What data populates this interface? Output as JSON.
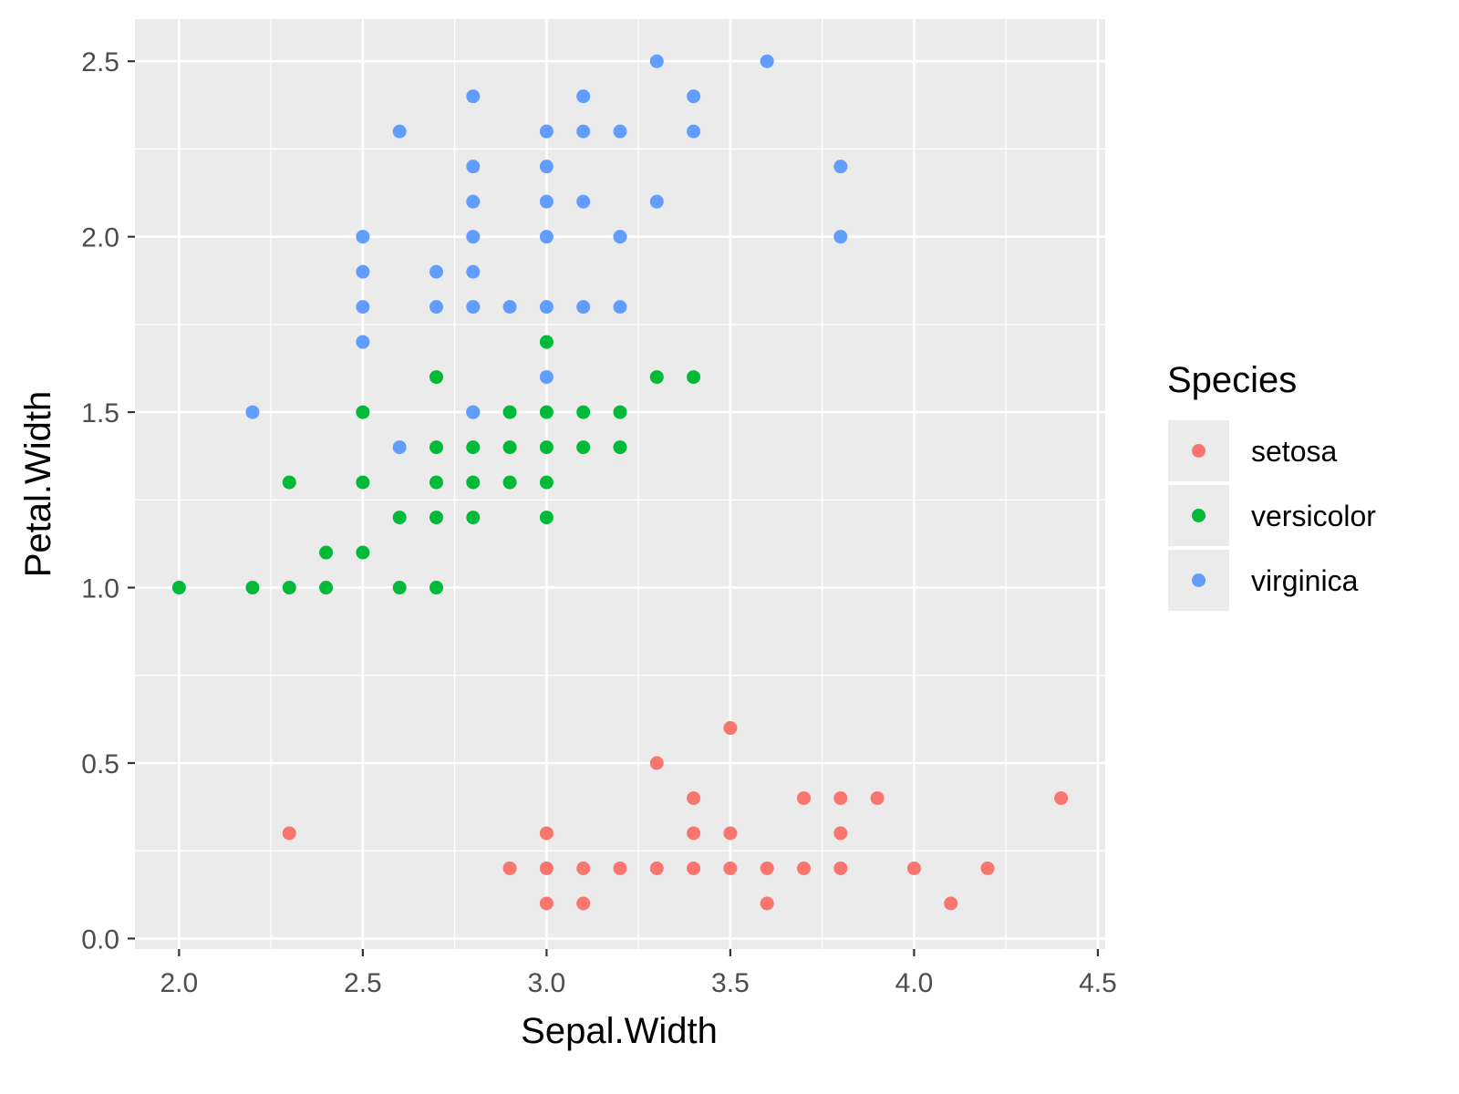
{
  "chart_data": {
    "type": "scatter",
    "title": "",
    "xlabel": "Sepal.Width",
    "ylabel": "Petal.Width",
    "xlim": [
      1.88,
      4.52
    ],
    "ylim": [
      -0.03,
      2.62
    ],
    "x_ticks": [
      2.0,
      2.5,
      3.0,
      3.5,
      4.0,
      4.5
    ],
    "x_tick_labels": [
      "2.0",
      "2.5",
      "3.0",
      "3.5",
      "4.0",
      "4.5"
    ],
    "y_ticks": [
      0.0,
      0.5,
      1.0,
      1.5,
      2.0,
      2.5
    ],
    "y_tick_labels": [
      "0.0",
      "0.5",
      "1.0",
      "1.5",
      "2.0",
      "2.5"
    ],
    "grid": true,
    "legend_title": "Species",
    "legend_position": "right",
    "series": [
      {
        "name": "setosa",
        "color": "#F8766D",
        "points": [
          [
            2.3,
            0.3
          ],
          [
            2.9,
            0.2
          ],
          [
            3.0,
            0.1
          ],
          [
            3.0,
            0.2
          ],
          [
            3.0,
            0.3
          ],
          [
            3.1,
            0.1
          ],
          [
            3.1,
            0.2
          ],
          [
            3.2,
            0.2
          ],
          [
            3.3,
            0.2
          ],
          [
            3.3,
            0.5
          ],
          [
            3.4,
            0.2
          ],
          [
            3.4,
            0.3
          ],
          [
            3.4,
            0.4
          ],
          [
            3.5,
            0.2
          ],
          [
            3.5,
            0.3
          ],
          [
            3.5,
            0.6
          ],
          [
            3.6,
            0.1
          ],
          [
            3.6,
            0.2
          ],
          [
            3.7,
            0.2
          ],
          [
            3.7,
            0.4
          ],
          [
            3.8,
            0.2
          ],
          [
            3.8,
            0.3
          ],
          [
            3.8,
            0.4
          ],
          [
            3.9,
            0.4
          ],
          [
            4.0,
            0.2
          ],
          [
            4.1,
            0.1
          ],
          [
            4.2,
            0.2
          ],
          [
            4.4,
            0.4
          ]
        ]
      },
      {
        "name": "versicolor",
        "color": "#00BA38",
        "points": [
          [
            2.0,
            1.0
          ],
          [
            2.2,
            1.0
          ],
          [
            2.3,
            1.0
          ],
          [
            2.3,
            1.3
          ],
          [
            2.4,
            1.0
          ],
          [
            2.4,
            1.1
          ],
          [
            2.5,
            1.1
          ],
          [
            2.5,
            1.3
          ],
          [
            2.5,
            1.5
          ],
          [
            2.6,
            1.0
          ],
          [
            2.6,
            1.2
          ],
          [
            2.7,
            1.0
          ],
          [
            2.7,
            1.2
          ],
          [
            2.7,
            1.3
          ],
          [
            2.7,
            1.4
          ],
          [
            2.7,
            1.6
          ],
          [
            2.8,
            1.2
          ],
          [
            2.8,
            1.3
          ],
          [
            2.8,
            1.4
          ],
          [
            2.8,
            1.5
          ],
          [
            2.9,
            1.3
          ],
          [
            2.9,
            1.4
          ],
          [
            2.9,
            1.5
          ],
          [
            3.0,
            1.2
          ],
          [
            3.0,
            1.3
          ],
          [
            3.0,
            1.4
          ],
          [
            3.0,
            1.5
          ],
          [
            3.0,
            1.7
          ],
          [
            3.1,
            1.4
          ],
          [
            3.1,
            1.5
          ],
          [
            3.2,
            1.4
          ],
          [
            3.2,
            1.5
          ],
          [
            3.3,
            1.6
          ],
          [
            3.4,
            1.6
          ]
        ]
      },
      {
        "name": "virginica",
        "color": "#619CFF",
        "points": [
          [
            2.2,
            1.5
          ],
          [
            2.5,
            1.7
          ],
          [
            2.5,
            1.8
          ],
          [
            2.5,
            1.9
          ],
          [
            2.5,
            2.0
          ],
          [
            2.6,
            1.4
          ],
          [
            2.6,
            2.3
          ],
          [
            2.7,
            1.8
          ],
          [
            2.7,
            1.9
          ],
          [
            2.8,
            1.5
          ],
          [
            2.8,
            1.8
          ],
          [
            2.8,
            1.9
          ],
          [
            2.8,
            2.0
          ],
          [
            2.8,
            2.1
          ],
          [
            2.8,
            2.2
          ],
          [
            2.8,
            2.4
          ],
          [
            2.9,
            1.8
          ],
          [
            3.0,
            1.6
          ],
          [
            3.0,
            1.8
          ],
          [
            3.0,
            2.0
          ],
          [
            3.0,
            2.1
          ],
          [
            3.0,
            2.2
          ],
          [
            3.0,
            2.3
          ],
          [
            3.1,
            1.8
          ],
          [
            3.1,
            2.1
          ],
          [
            3.1,
            2.3
          ],
          [
            3.1,
            2.4
          ],
          [
            3.2,
            1.8
          ],
          [
            3.2,
            2.0
          ],
          [
            3.2,
            2.3
          ],
          [
            3.3,
            2.1
          ],
          [
            3.3,
            2.5
          ],
          [
            3.4,
            2.3
          ],
          [
            3.4,
            2.4
          ],
          [
            3.6,
            2.5
          ],
          [
            3.8,
            2.0
          ],
          [
            3.8,
            2.2
          ]
        ]
      }
    ]
  }
}
